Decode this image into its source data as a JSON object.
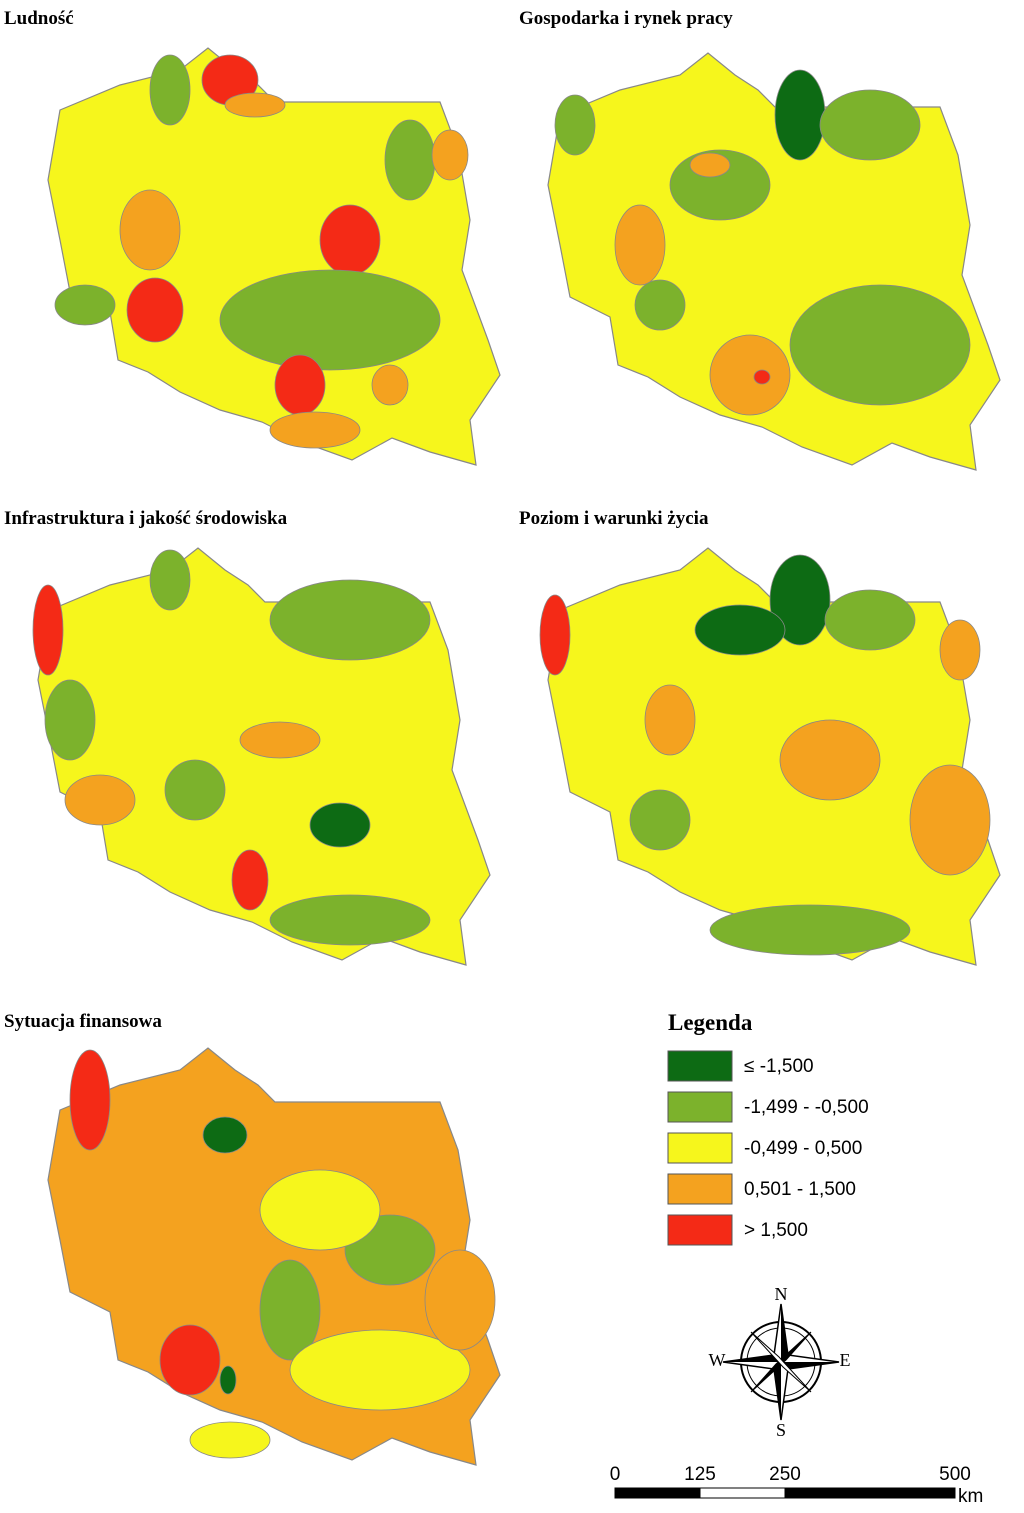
{
  "panels": [
    {
      "title": "Ludność"
    },
    {
      "title": "Gospodarka i rynek pracy"
    },
    {
      "title": "Infrastruktura i jakość środowiska"
    },
    {
      "title": "Poziom i warunki życia"
    },
    {
      "title": "Sytuacja finansowa"
    }
  ],
  "legend": {
    "title": "Legenda",
    "classes": [
      {
        "label": "≤ -1,500",
        "color": "#0d6b14"
      },
      {
        "label": "-1,499 - -0,500",
        "color": "#7cb22c"
      },
      {
        "label": "-0,499 - 0,500",
        "color": "#f6f61c"
      },
      {
        "label": "0,501 - 1,500",
        "color": "#f4a21f"
      },
      {
        "label": "> 1,500",
        "color": "#f42a16"
      }
    ]
  },
  "compass": {
    "n": "N",
    "s": "S",
    "w": "W",
    "e": "E"
  },
  "scale": {
    "ticks": [
      0,
      125,
      250,
      500
    ],
    "unit": "km"
  }
}
